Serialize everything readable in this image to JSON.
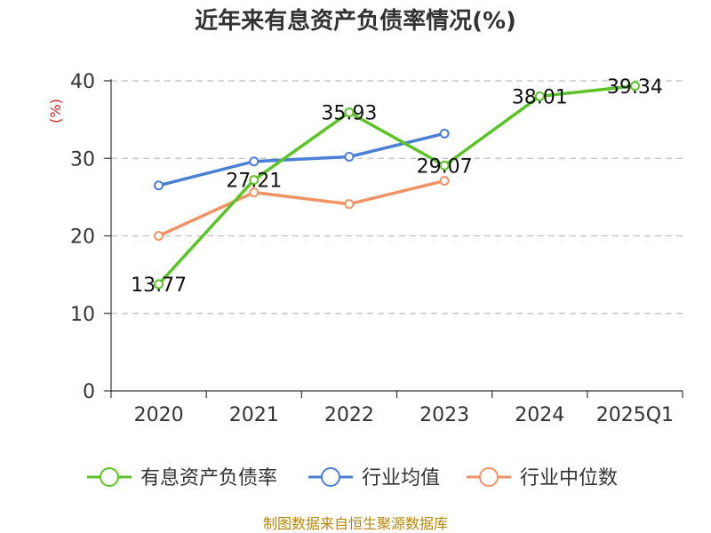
{
  "chart_data": {
    "type": "line",
    "title": "近年来有息资产负债率情况(%)",
    "ylabel": "(%)",
    "xlabel": "",
    "categories": [
      "2020",
      "2021",
      "2022",
      "2023",
      "2024",
      "2025Q1"
    ],
    "ylim": [
      0,
      40
    ],
    "yticks": [
      0,
      10,
      20,
      30,
      40
    ],
    "grid": true,
    "legend_position": "bottom",
    "series": [
      {
        "name": "有息资产负债率",
        "color": "#5ac424",
        "values": [
          13.77,
          27.21,
          35.93,
          29.07,
          38.01,
          39.34
        ],
        "labels": [
          "13.77",
          "27.21",
          "35.93",
          "29.07",
          "38.01",
          "39.34"
        ]
      },
      {
        "name": "行业均值",
        "color": "#4a7fd8",
        "values": [
          26.5,
          29.6,
          30.2,
          33.2,
          null,
          null
        ]
      },
      {
        "name": "行业中位数",
        "color": "#f39263",
        "values": [
          20.0,
          25.6,
          24.1,
          27.1,
          null,
          null
        ]
      }
    ],
    "source": "制图数据来自恒生聚源数据库"
  }
}
